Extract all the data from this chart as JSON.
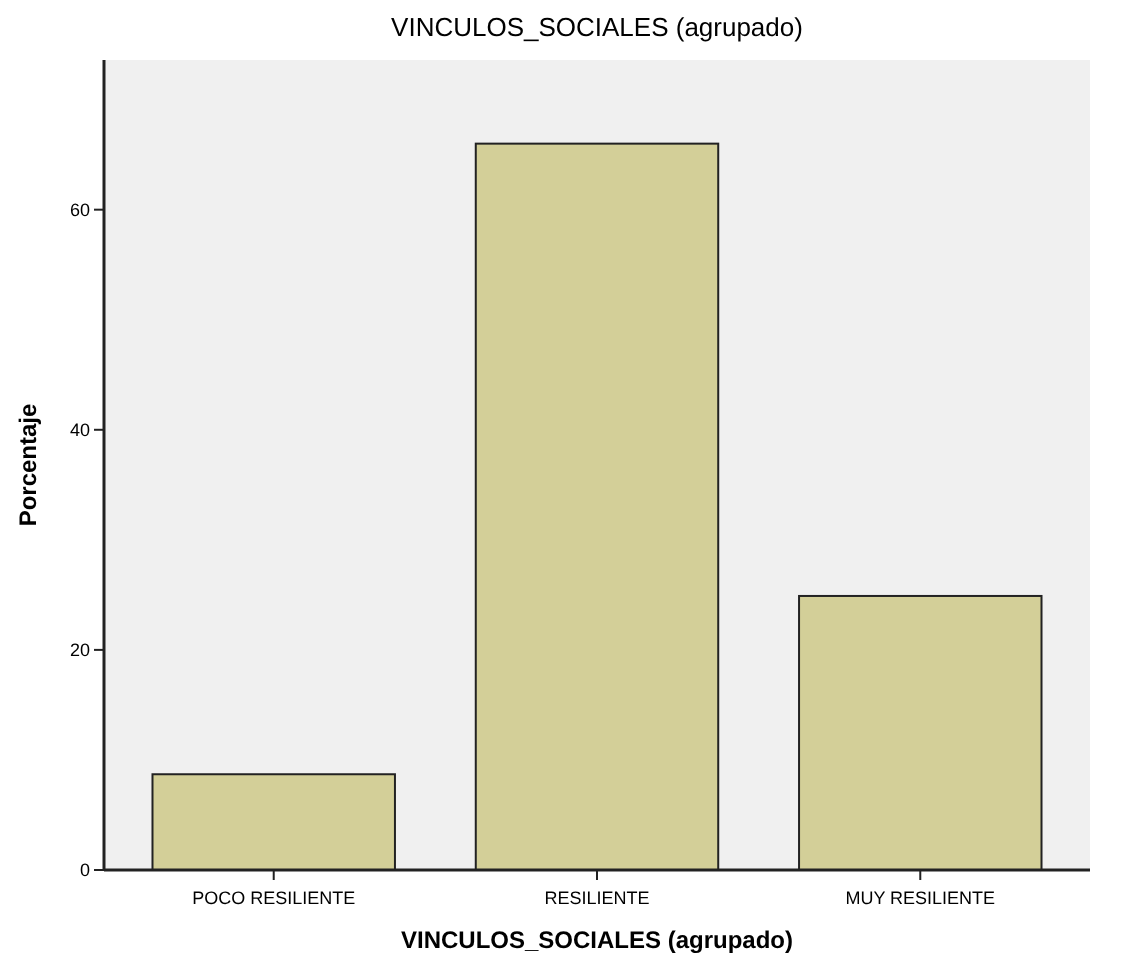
{
  "chart_data": {
    "type": "bar",
    "title": "VINCULOS_SOCIALES (agrupado)",
    "xlabel": "VINCULOS_SOCIALES (agrupado)",
    "ylabel": "Porcentaje",
    "categories": [
      "POCO RESILIENTE",
      "RESILIENTE",
      "MUY RESILIENTE"
    ],
    "values": [
      8.7,
      66,
      24.9
    ],
    "color": "#d3cf98",
    "ylim": [
      0,
      73.6
    ],
    "yticks": [
      0,
      20,
      40,
      60
    ],
    "grid": false
  }
}
